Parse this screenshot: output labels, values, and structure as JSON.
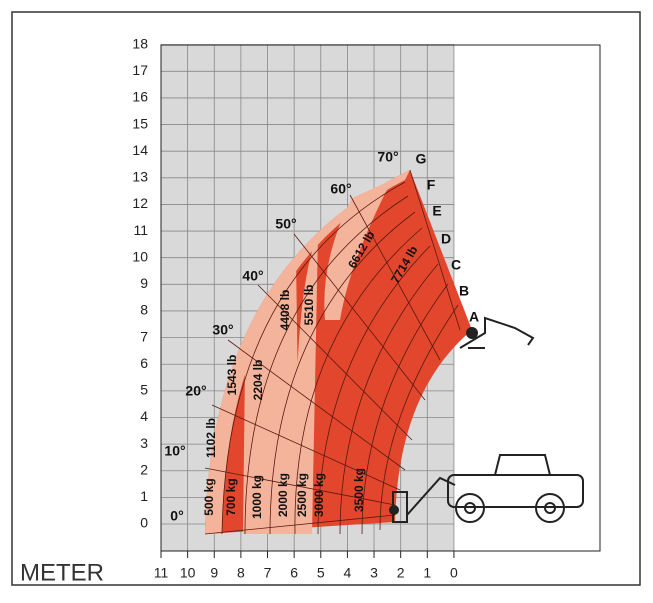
{
  "y_axis": {
    "ticks": [
      "0",
      "1",
      "2",
      "3",
      "4",
      "5",
      "6",
      "7",
      "8",
      "9",
      "10",
      "11",
      "12",
      "13",
      "14",
      "15",
      "16",
      "17",
      "18"
    ]
  },
  "x_axis": {
    "unit": "METER",
    "ticks": [
      "11",
      "10",
      "9",
      "8",
      "7",
      "6",
      "5",
      "4",
      "3",
      "2",
      "1",
      "0"
    ]
  },
  "angles": [
    "0°",
    "10°",
    "20°",
    "30°",
    "40°",
    "50°",
    "60°",
    "70°"
  ],
  "positions": [
    "G",
    "F",
    "E",
    "D",
    "C",
    "B",
    "A"
  ],
  "loads": [
    "500 kg",
    "1102 lb",
    "700 kg",
    "1543 lb",
    "1000 kg",
    "2204 lb",
    "2000 kg",
    "4408 lb",
    "2500 kg",
    "5510 lb",
    "3000 kg",
    "6612 lb",
    "3500 kg",
    "7714 lb"
  ]
}
